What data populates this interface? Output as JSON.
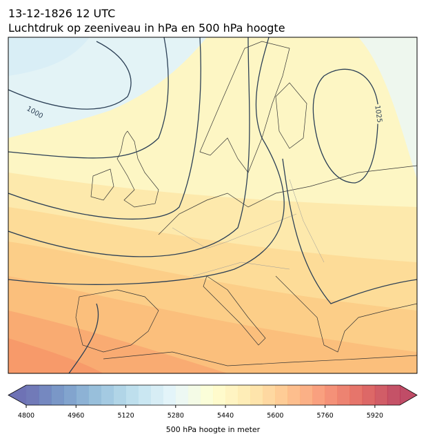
{
  "header": {
    "date": "13-12-1826 12 UTC",
    "title": "Luchtdruk op zeeniveau in hPa en 500 hPa hoogte"
  },
  "map": {
    "isobar_labels": [
      "1000",
      "1025"
    ]
  },
  "colorbar": {
    "min": 4800,
    "max": 6000,
    "step": 40,
    "ticks": [
      4800,
      4960,
      5120,
      5280,
      5440,
      5600,
      5760,
      5920
    ],
    "label": "500 hPa hoogte in meter",
    "colors": [
      "#313695",
      "#4575b4",
      "#74add1",
      "#abd9e9",
      "#e0f3f8",
      "#ffffbf",
      "#fee090",
      "#fdae61",
      "#f46d43",
      "#d73027",
      "#a50026"
    ],
    "opacity": 0.7
  }
}
